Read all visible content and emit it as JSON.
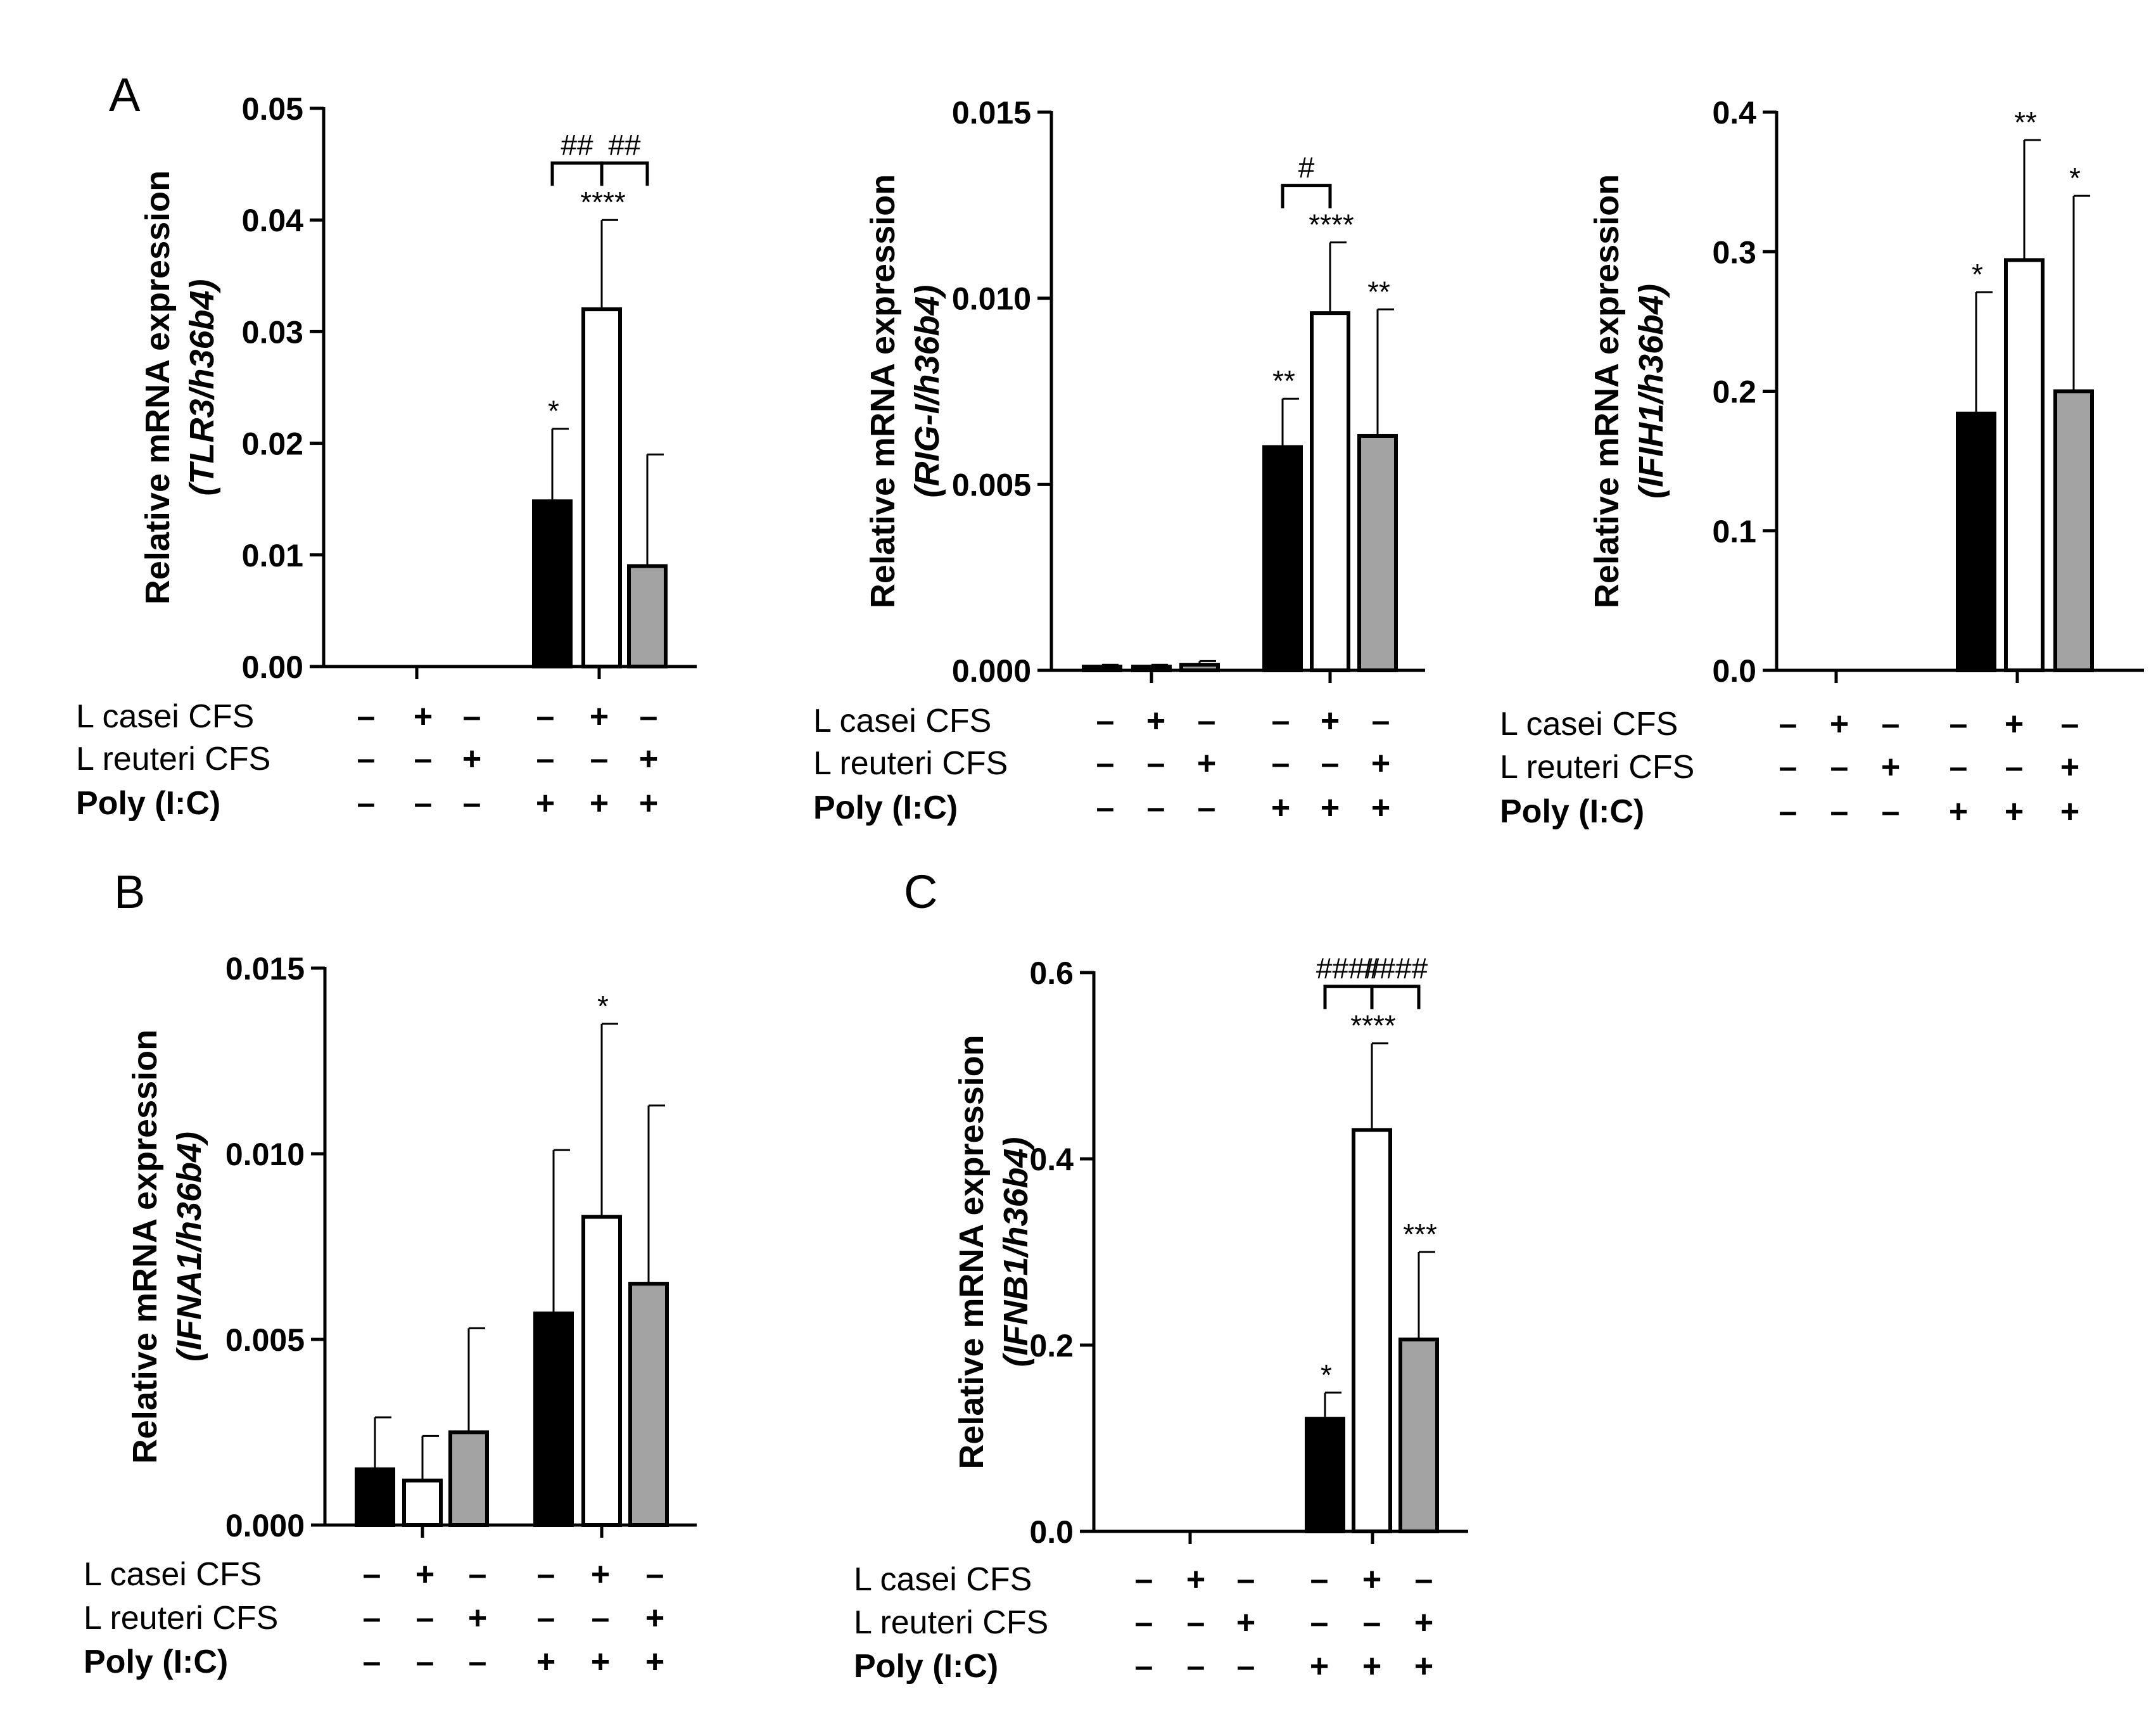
{
  "colors": {
    "black": "#000000",
    "white": "#ffffff",
    "gray": "#a3a3a3"
  },
  "row_labels": {
    "casei": "L casei CFS",
    "reuteri": "L reuteri CFS",
    "poly": "Poly (I:C)"
  },
  "condition_signs": {
    "casei": [
      "–",
      "+",
      "–",
      "–",
      "+",
      "–"
    ],
    "reuteri": [
      "–",
      "–",
      "+",
      "–",
      "–",
      "+"
    ],
    "poly": [
      "–",
      "–",
      "–",
      "+",
      "+",
      "+"
    ]
  },
  "chart_data": [
    {
      "id": "tlr3",
      "panel_letter": "A",
      "type": "bar",
      "ylabel_main": "Relative mRNA expression",
      "ylabel_gene": "(TLR3/h36b4)",
      "ylim": [
        0,
        0.05
      ],
      "ytick_labels": [
        "0.00",
        "0.01",
        "0.02",
        "0.03",
        "0.04",
        "0.05"
      ],
      "values": [
        0,
        0,
        0,
        0.0148,
        0.032,
        0.009
      ],
      "errors": [
        0,
        0,
        0,
        0.0065,
        0.008,
        0.01
      ],
      "sig": [
        "",
        "",
        "",
        "*",
        "****",
        ""
      ],
      "brackets": [
        {
          "from": 3,
          "to": 4,
          "label": "##"
        },
        {
          "from": 4,
          "to": 5,
          "label": "##"
        }
      ]
    },
    {
      "id": "rigi",
      "panel_letter": "",
      "type": "bar",
      "ylabel_main": "Relative mRNA expression",
      "ylabel_gene": "(RIG-I/h36b4)",
      "ylim": [
        0,
        0.015
      ],
      "ytick_labels": [
        "0.000",
        "0.005",
        "0.010",
        "0.015"
      ],
      "values": [
        0.0001,
        0.0001,
        0.00015,
        0.006,
        0.0096,
        0.0063
      ],
      "errors": [
        5e-05,
        5e-05,
        0.0001,
        0.0013,
        0.0019,
        0.0034
      ],
      "sig": [
        "",
        "",
        "",
        "**",
        "****",
        "**"
      ],
      "brackets": [
        {
          "from": 3,
          "to": 4,
          "label": "#"
        }
      ]
    },
    {
      "id": "ifih1",
      "panel_letter": "",
      "type": "bar",
      "ylabel_main": "Relative mRNA expression",
      "ylabel_gene": "(IFIH1/h36b4)",
      "ylim": [
        0,
        0.4
      ],
      "ytick_labels": [
        "0.0",
        "0.1",
        "0.2",
        "0.3",
        "0.4"
      ],
      "values": [
        0,
        0,
        0,
        0.184,
        0.294,
        0.2
      ],
      "errors": [
        0,
        0,
        0,
        0.087,
        0.086,
        0.14
      ],
      "sig": [
        "",
        "",
        "",
        "*",
        "**",
        "*"
      ],
      "brackets": []
    },
    {
      "id": "ifna1",
      "panel_letter": "B",
      "type": "bar",
      "ylabel_main": "Relative mRNA expression",
      "ylabel_gene": "(IFNA1/h36b4)",
      "ylim": [
        0,
        0.015
      ],
      "ytick_labels": [
        "0.000",
        "0.005",
        "0.010",
        "0.015"
      ],
      "values": [
        0.0015,
        0.0012,
        0.0025,
        0.0057,
        0.0083,
        0.0065
      ],
      "errors": [
        0.0014,
        0.0012,
        0.0028,
        0.0044,
        0.0052,
        0.0048
      ],
      "sig": [
        "",
        "",
        "",
        "",
        "*",
        ""
      ],
      "brackets": []
    },
    {
      "id": "ifnb1",
      "panel_letter": "C",
      "type": "bar",
      "ylabel_main": "Relative mRNA expression",
      "ylabel_gene": "(IFNB1/h36b4)",
      "ylim": [
        0,
        0.6
      ],
      "ytick_labels": [
        "0.0",
        "0.2",
        "0.4",
        "0.6"
      ],
      "values": [
        0,
        0,
        0,
        0.121,
        0.431,
        0.206
      ],
      "errors": [
        0,
        0,
        0,
        0.028,
        0.093,
        0.094
      ],
      "sig": [
        "",
        "",
        "",
        "*",
        "****",
        "***"
      ],
      "brackets": [
        {
          "from": 3,
          "to": 4,
          "label": "####"
        },
        {
          "from": 4,
          "to": 5,
          "label": "####"
        }
      ]
    }
  ]
}
